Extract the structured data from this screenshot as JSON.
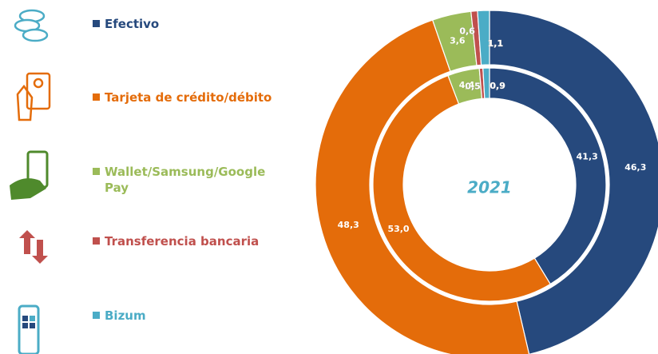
{
  "chart_data": {
    "type": "donut",
    "center_label": "2021",
    "categories": [
      "Efectivo",
      "Tarjeta de crédito/débito",
      "Wallet/Samsung/Google Pay",
      "Transferencia bancaria",
      "Bizum"
    ],
    "colors": [
      "#26497d",
      "#e46c0a",
      "#9bbb59",
      "#c0504d",
      "#4bacc6"
    ],
    "series": [
      {
        "values": [
          46.3,
          48.3,
          3.6,
          0.6,
          1.1
        ],
        "value_labels": [
          "46,3",
          "48,3",
          "3,6",
          "0,6",
          "1,1"
        ]
      },
      {
        "values": [
          41.3,
          53.0,
          4.4,
          0.5,
          0.9
        ],
        "value_labels": [
          "41,3",
          "53,0",
          "4,4",
          "0,5",
          "0,9"
        ]
      }
    ]
  }
}
